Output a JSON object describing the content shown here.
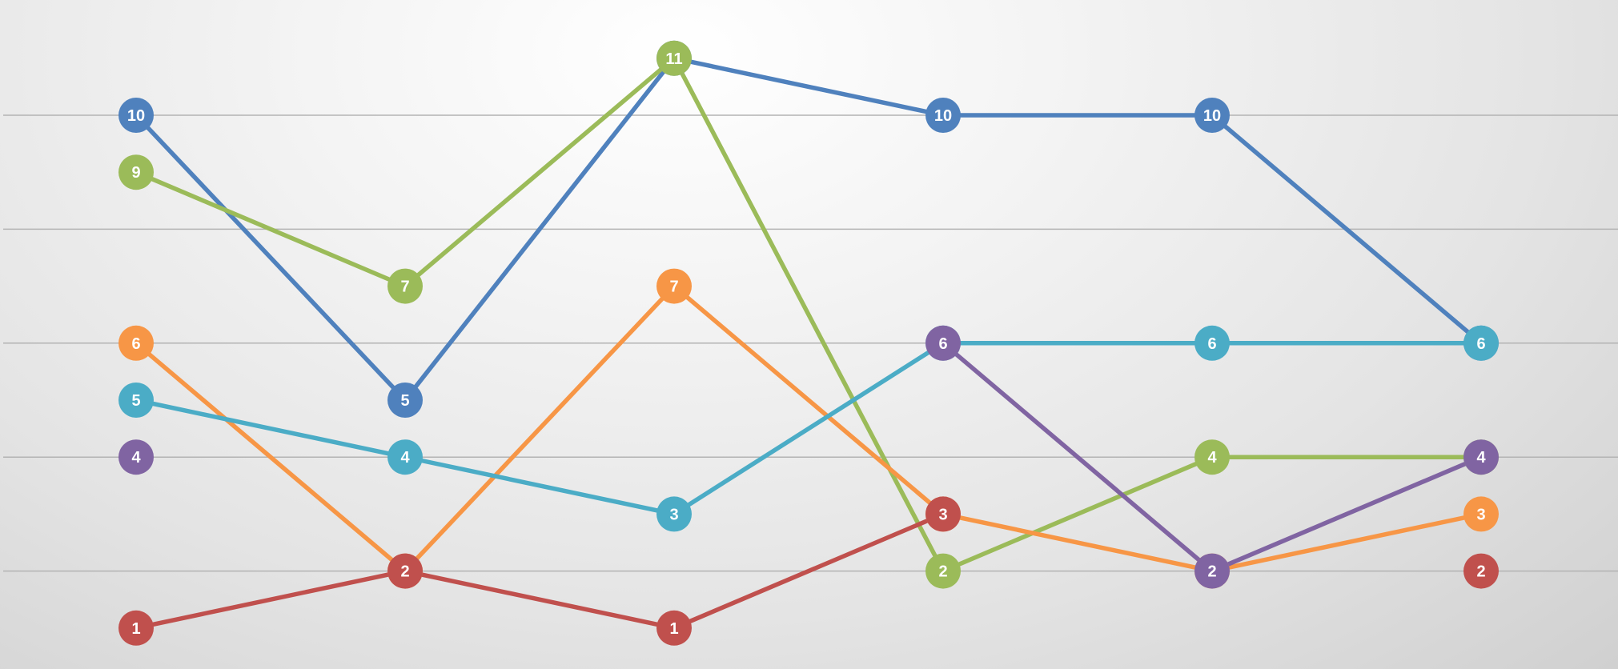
{
  "chart_data": {
    "type": "line",
    "x": [
      1,
      2,
      3,
      4,
      5,
      6
    ],
    "ylim": [
      0,
      12
    ],
    "gridlines_y": [
      2,
      4,
      6,
      8,
      10
    ],
    "grid": true,
    "show_axes": false,
    "show_legend": false,
    "data_labels": true,
    "series": [
      {
        "color": "#4f81bd",
        "values": [
          10,
          5,
          11,
          10,
          10,
          6
        ]
      },
      {
        "color": "#9bbb59",
        "values": [
          9,
          7,
          11,
          2,
          4,
          4
        ]
      },
      {
        "color": "#f79646",
        "values": [
          6,
          2,
          7,
          3,
          2,
          3
        ]
      },
      {
        "color": "#4bacc6",
        "values": [
          5,
          4,
          3,
          6,
          6,
          6
        ]
      },
      {
        "color": "#8064a2",
        "values": [
          4,
          null,
          null,
          6,
          2,
          4
        ]
      },
      {
        "color": "#c0504d",
        "values": [
          1,
          2,
          1,
          3,
          null,
          2
        ]
      }
    ]
  }
}
